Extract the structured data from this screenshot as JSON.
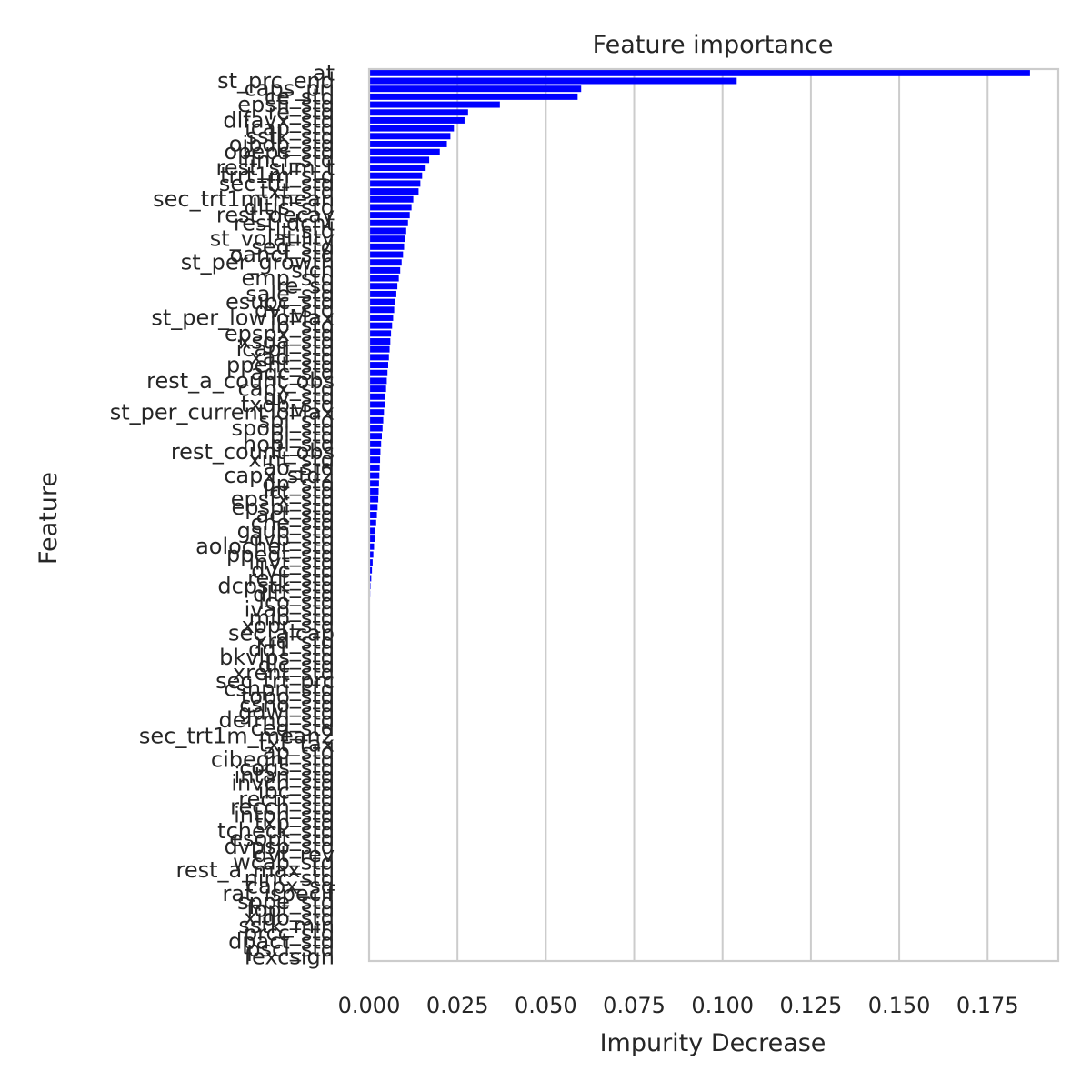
{
  "chart_data": {
    "type": "bar",
    "orientation": "horizontal",
    "title": "Feature importance",
    "xlabel": "Impurity Decrease",
    "ylabel": "Feature",
    "xlim": [
      0,
      0.195
    ],
    "xticks": [
      "0.000",
      "0.025",
      "0.050",
      "0.075",
      "0.100",
      "0.125",
      "0.150",
      "0.175"
    ],
    "xtick_values": [
      0,
      0.025,
      0.05,
      0.075,
      0.1,
      0.125,
      0.15,
      0.175
    ],
    "grid": "vertical",
    "bar_color": "#0000ff",
    "categories": [
      "at",
      "st_prc_end",
      "caps_pri",
      "ce_std",
      "epsfi_std",
      "re_std",
      "dlfavx_std",
      "icap_std",
      "sstk_std",
      "oibdp_std",
      "opeps_std",
      "fincf_std",
      "rest_sum_t",
      "trrt1m_std",
      "sec_ttl_std",
      "txt_std",
      "sec_trt1m_mean",
      "dltis_std",
      "rest_decay",
      "rest_dcnt",
      "lt_std",
      "st_volatility",
      "seq_std",
      "oancf_std",
      "st_per_growth",
      "sich",
      "emp_std",
      "re_sd",
      "sale_std",
      "esubc_std",
      "dvt_std",
      "st_per_lowToMax",
      "ib_std",
      "epspx_std",
      "xsga_std",
      "icapt_std",
      "xad_std",
      "ppent_std",
      "aqc_std",
      "rest_a_count_obs",
      "capx_std",
      "dv_std",
      "txdb_std",
      "st_per_currentToMax",
      "spi_std",
      "spopi_std",
      "pi_std",
      "nopi_std",
      "rest_count_obs",
      "xint_std",
      "ao_std",
      "capx_std2",
      "dp_std",
      "lct_std",
      "epsfx_std",
      "epspi_std",
      "act_std",
      "che_std",
      "gsub_std",
      "dvp_std",
      "aolocher_std",
      "ppegt_std",
      "invt_std",
      "dvc_std",
      "rect_std",
      "dcpstk_std",
      "dltt_std",
      "lco_std",
      "ivao_std",
      "mib_std",
      "xopr_std",
      "sec_alcap",
      "xrd_std",
      "dd1_std",
      "bkvlps_std",
      "dlc_std",
      "xrent_std",
      "sec_trt_prc",
      "cshpri_std",
      "topo_std",
      "csho_std",
      "gdwl_std",
      "defrng_std",
      "ceq_std",
      "sec_trt1m_mean2",
      "txt_tax",
      "ap_std",
      "cibegni_std",
      "cogs_std",
      "intan_std",
      "invch_std",
      "ibc_std",
      "rectr_std",
      "recch_std",
      "intpn_std",
      "txp_std",
      "tcheck_std",
      "esopt_std",
      "dvpsp_std",
      "dvt_rev",
      "wcap_std",
      "rest_a_max_ttl",
      "ninc_std",
      "capx_sd",
      "rat_ispecif",
      "sppe_std",
      "fopt_std",
      "xido_std",
      "sstk_min",
      "prcc_std",
      "dpact_std",
      "pscl_std",
      "fexcsign"
    ],
    "values": [
      0.187,
      0.104,
      0.06,
      0.059,
      0.037,
      0.028,
      0.027,
      0.024,
      0.023,
      0.022,
      0.02,
      0.017,
      0.016,
      0.015,
      0.0145,
      0.014,
      0.0125,
      0.012,
      0.0115,
      0.011,
      0.0105,
      0.0102,
      0.0099,
      0.0096,
      0.0092,
      0.0088,
      0.0084,
      0.008,
      0.0077,
      0.0074,
      0.0071,
      0.0068,
      0.0065,
      0.0062,
      0.006,
      0.0058,
      0.0056,
      0.0054,
      0.0052,
      0.005,
      0.0048,
      0.0046,
      0.0044,
      0.0042,
      0.004,
      0.0038,
      0.0036,
      0.0034,
      0.0032,
      0.0031,
      0.003,
      0.0029,
      0.0028,
      0.0027,
      0.0026,
      0.0024,
      0.0022,
      0.002,
      0.0018,
      0.0016,
      0.0014,
      0.0012,
      0.001,
      0.0008,
      0.0006,
      0.0004,
      0.0003,
      0.0002,
      0.0001,
      0.0001,
      5e-05,
      5e-05,
      3e-05,
      2e-05,
      1e-05,
      0,
      0,
      0,
      0,
      0,
      0,
      0,
      0,
      0,
      0,
      0,
      0,
      0,
      0,
      0,
      0,
      0,
      0,
      0,
      0,
      0,
      0,
      0,
      0,
      0,
      0,
      0,
      0,
      0,
      0,
      0,
      0,
      0,
      0,
      0,
      0,
      0,
      0
    ]
  }
}
